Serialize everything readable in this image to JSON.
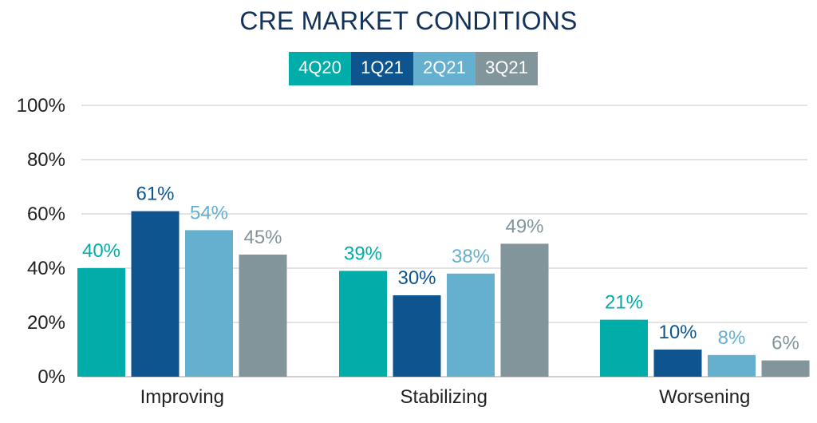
{
  "chart_data": {
    "type": "bar",
    "title": "CRE MARKET CONDITIONS",
    "categories": [
      "Improving",
      "Stabilizing",
      "Worsening"
    ],
    "series": [
      {
        "name": "4Q20",
        "color": "#00ada9",
        "values": [
          40,
          39,
          21
        ],
        "labels": [
          "40%",
          "39%",
          "21%"
        ]
      },
      {
        "name": "1Q21",
        "color": "#0e5590",
        "values": [
          61,
          30,
          10
        ],
        "labels": [
          "61%",
          "30%",
          "10%"
        ]
      },
      {
        "name": "2Q21",
        "color": "#65b0cf",
        "values": [
          54,
          38,
          8
        ],
        "labels": [
          "54%",
          "38%",
          "8%"
        ]
      },
      {
        "name": "3Q21",
        "color": "#81959b",
        "values": [
          45,
          49,
          6
        ],
        "labels": [
          "45%",
          "49%",
          "6%"
        ]
      }
    ],
    "yticks": [
      "0%",
      "20%",
      "40%",
      "60%",
      "80%",
      "100%"
    ],
    "ylim": [
      0,
      100
    ],
    "legend_position": "top-center",
    "grid": true
  }
}
